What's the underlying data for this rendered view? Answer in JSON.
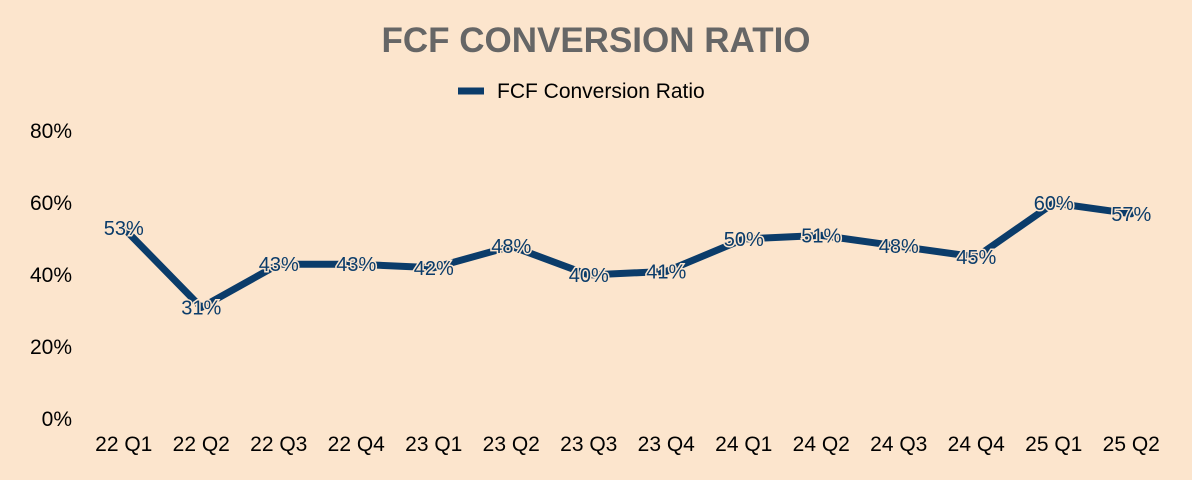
{
  "chart_data": {
    "type": "line",
    "title": "FCF CONVERSION RATIO",
    "categories": [
      "22 Q1",
      "22 Q2",
      "22 Q3",
      "22 Q4",
      "23 Q1",
      "23 Q2",
      "23 Q3",
      "23 Q4",
      "24 Q1",
      "24 Q2",
      "24 Q3",
      "24 Q4",
      "25 Q1",
      "25 Q2"
    ],
    "series": [
      {
        "name": "FCF Conversion Ratio",
        "values": [
          53,
          31,
          43,
          43,
          42,
          48,
          40,
          41,
          50,
          51,
          48,
          45,
          60,
          57
        ],
        "labels": [
          "53%",
          "31%",
          "43%",
          "43%",
          "42%",
          "48%",
          "40%",
          "41%",
          "50%",
          "51%",
          "48%",
          "45%",
          "60%",
          "57%"
        ]
      }
    ],
    "ylim": [
      0,
      80
    ],
    "yticks": [
      0,
      20,
      40,
      60,
      80
    ],
    "ytick_labels": [
      "0%",
      "20%",
      "40%",
      "60%",
      "80%"
    ],
    "xlabel": "",
    "ylabel": "",
    "grid": false,
    "legend_position": "top-center"
  },
  "colors": {
    "background": "#FCE5CD",
    "series": "#0B3C6A",
    "title": "#666666",
    "axis_text": "#000000",
    "label_text": "#0B3C6A"
  }
}
